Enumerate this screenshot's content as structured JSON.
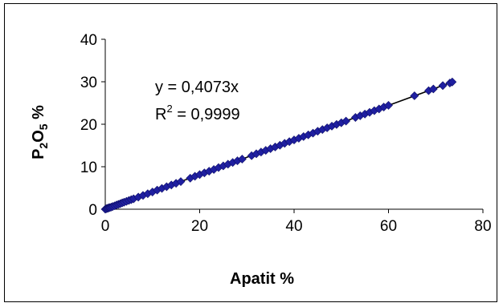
{
  "chart_data": {
    "type": "scatter",
    "title": "",
    "xlabel": "Apatit %",
    "ylabel": {
      "base1": "P",
      "sub1": "2",
      "base2": "O",
      "sub2": "5",
      "suffix": " %"
    },
    "xlim": [
      0,
      80
    ],
    "ylim": [
      0,
      40
    ],
    "x_ticks": [
      0,
      20,
      40,
      60,
      80
    ],
    "y_ticks": [
      0,
      10,
      20,
      30,
      40
    ],
    "grid": false,
    "legend": "none",
    "marker": "diamond",
    "marker_color": "#1F1FA0",
    "trendline_color": "#000000",
    "trendline": {
      "type": "linear-through-origin",
      "slope": 0.4073,
      "x_range": [
        0,
        74
      ],
      "equation_label": "y = 0,4073x",
      "r2_label": {
        "prefix": "R",
        "sup": "2",
        "suffix": " = 0,9999"
      }
    },
    "series": [
      {
        "x": [
          0,
          0.2,
          0.4,
          0.6,
          0.8,
          1.0,
          1.3,
          1.6,
          2.0,
          2.4,
          2.8,
          3.2,
          3.6,
          4.0,
          4.5,
          5.0,
          5.5,
          6.0,
          7.0,
          8.0,
          9.0,
          10.0,
          11.0,
          12.0,
          13.0,
          14.0,
          15.0,
          16.0,
          18.0,
          19.0,
          20.0,
          21.0,
          22.0,
          23.0,
          24.0,
          25.0,
          26.0,
          27.0,
          28.0,
          29.0,
          31.0,
          32.0,
          33.0,
          34.0,
          35.0,
          36.0,
          37.0,
          38.0,
          39.0,
          40.0,
          41.0,
          42.0,
          43.0,
          44.0,
          45.0,
          46.0,
          47.0,
          48.0,
          49.0,
          50.0,
          51.0,
          53.0,
          54.0,
          55.0,
          56.0,
          57.0,
          58.0,
          59.0,
          60.0,
          65.5,
          68.5,
          69.5,
          71.5,
          73.0,
          73.5
        ],
        "y": [
          0,
          0.1,
          0.2,
          0.25,
          0.35,
          0.4,
          0.5,
          0.65,
          0.8,
          1.0,
          1.15,
          1.3,
          1.5,
          1.65,
          1.85,
          2.05,
          2.25,
          2.45,
          2.85,
          3.25,
          3.65,
          4.05,
          4.5,
          4.9,
          5.3,
          5.7,
          6.1,
          6.5,
          7.3,
          7.75,
          8.15,
          8.55,
          8.95,
          9.35,
          9.8,
          10.2,
          10.6,
          11.0,
          11.4,
          11.8,
          12.6,
          13.05,
          13.45,
          13.85,
          14.25,
          14.65,
          15.05,
          15.5,
          15.9,
          16.3,
          16.7,
          17.1,
          17.5,
          17.9,
          18.35,
          18.75,
          19.15,
          19.55,
          19.95,
          20.35,
          20.75,
          21.6,
          22.0,
          22.4,
          22.8,
          23.2,
          23.6,
          24.05,
          24.45,
          26.7,
          27.9,
          28.3,
          29.1,
          29.7,
          29.95
        ]
      }
    ]
  }
}
